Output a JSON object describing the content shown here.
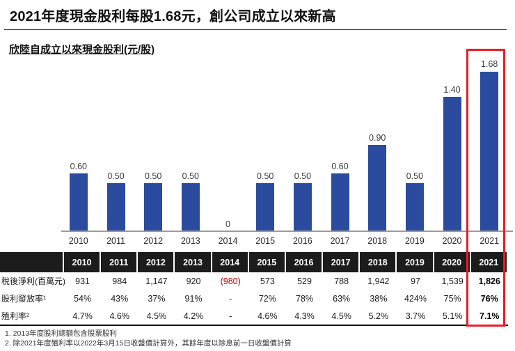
{
  "page": {
    "title": "2021年度現金股利每股1.68元，創公司成立以來新高"
  },
  "chart_data": {
    "type": "bar",
    "title": "欣陸自成立以來現金股利(元/股)",
    "categories": [
      "2010",
      "2011",
      "2012",
      "2013",
      "2014",
      "2015",
      "2016",
      "2017",
      "2018",
      "2019",
      "2020",
      "2021"
    ],
    "values": [
      0.6,
      0.5,
      0.5,
      0.5,
      0,
      0.5,
      0.5,
      0.6,
      0.9,
      0.5,
      1.4,
      1.68
    ],
    "value_labels": [
      "0.60",
      "0.50",
      "0.50",
      "0.50",
      "0",
      "0.50",
      "0.50",
      "0.60",
      "0.90",
      "0.50",
      "1.40",
      "1.68"
    ],
    "xlabel": "",
    "ylabel": "元/股",
    "ylim": [
      0,
      1.78
    ],
    "grid": false,
    "legend": "none",
    "bar_color": "#2a4b9e",
    "highlight_category": "2021",
    "highlight_color": "#ec1c24"
  },
  "table": {
    "corner_label": "",
    "years": [
      "2010",
      "2011",
      "2012",
      "2013",
      "2014",
      "2015",
      "2016",
      "2017",
      "2018",
      "2019",
      "2020",
      "2021"
    ],
    "rows": [
      {
        "label": "稅後淨利(百萬元)",
        "values": [
          "931",
          "984",
          "1,147",
          "920",
          "(980)",
          "573",
          "529",
          "788",
          "1,942",
          "97",
          "1,539",
          "1,826"
        ]
      },
      {
        "label": "股利發放率¹",
        "values": [
          "54%",
          "43%",
          "37%",
          "91%",
          "-",
          "72%",
          "78%",
          "63%",
          "38%",
          "424%",
          "75%",
          "76%"
        ]
      },
      {
        "label": "殖利率²",
        "values": [
          "4.7%",
          "4.6%",
          "4.5%",
          "4.2%",
          "-",
          "4.6%",
          "4.3%",
          "4.5%",
          "5.2%",
          "3.7%",
          "5.1%",
          "7.1%"
        ]
      }
    ],
    "negative_color": "#c00000",
    "header_bg": "#1c1c1c"
  },
  "footnotes": [
    "1. 2013年度股利總額包含股票股利",
    "2. 除2021年度殖利率以2022年3月15日收盤價計算外，其餘年度以除息前一日收盤價計算"
  ],
  "colors": {
    "title_rule_blue": "#4472c4",
    "bar_blue": "#2a4b9e",
    "highlight_red": "#ec1c24",
    "axis_gray": "#9b9b9b"
  }
}
